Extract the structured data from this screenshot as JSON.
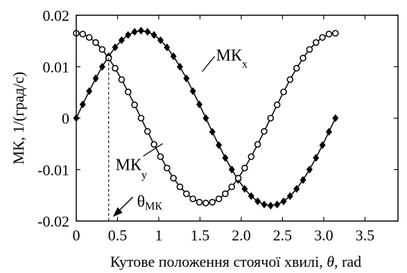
{
  "chart_data": {
    "type": "line",
    "title": "",
    "xlabel_prefix": "Кутове положення стоячої хвилі, ",
    "xlabel_symbol": "θ",
    "xlabel_suffix": ", rad",
    "ylabel": "МК, 1/(град/с)",
    "xlim": [
      0,
      3.9
    ],
    "ylim": [
      -0.02,
      0.02
    ],
    "xticks": [
      0,
      0.5,
      1,
      1.5,
      2.0,
      2.5,
      3.0,
      3.5
    ],
    "xtick_labels": [
      "0",
      "0.5",
      "1",
      "1.5",
      "2.0",
      "2.5",
      "3.0",
      "3.5"
    ],
    "yticks": [
      0.02,
      0.01,
      0,
      -0.01,
      -0.02
    ],
    "ytick_labels": [
      "0.02",
      "0.01",
      "0",
      "-0.01",
      "-0.02"
    ],
    "grid": false,
    "legend": "none",
    "series": [
      {
        "marker": "diamond",
        "color": "#000000",
        "x": [
          0,
          0.0785,
          0.157,
          0.2356,
          0.3142,
          0.3927,
          0.4712,
          0.5498,
          0.6283,
          0.7069,
          0.7854,
          0.864,
          0.9425,
          1.021,
          1.0996,
          1.1781,
          1.2566,
          1.3352,
          1.4137,
          1.4923,
          1.5708,
          1.6493,
          1.7279,
          1.8064,
          1.885,
          1.9635,
          2.042,
          2.1206,
          2.1991,
          2.2777,
          2.3562,
          2.4347,
          2.5133,
          2.5918,
          2.6704,
          2.7489,
          2.8274,
          2.906,
          2.9845,
          3.0631,
          3.1416
        ],
        "y": [
          0,
          0.00266,
          0.00525,
          0.00772,
          0.00999,
          0.01202,
          0.01375,
          0.01515,
          0.01617,
          0.01679,
          0.017,
          0.01679,
          0.01617,
          0.01515,
          0.01375,
          0.01202,
          0.00999,
          0.00772,
          0.00525,
          0.00266,
          0,
          -0.00266,
          -0.00525,
          -0.00772,
          -0.00999,
          -0.01202,
          -0.01375,
          -0.01515,
          -0.01617,
          -0.01679,
          -0.017,
          -0.01679,
          -0.01617,
          -0.01515,
          -0.01375,
          -0.01202,
          -0.00999,
          -0.00772,
          -0.00525,
          -0.00266,
          0
        ]
      },
      {
        "marker": "circle",
        "color": "#000000",
        "x": [
          0,
          0.0785,
          0.157,
          0.2356,
          0.3142,
          0.3927,
          0.4712,
          0.5498,
          0.6283,
          0.7069,
          0.7854,
          0.864,
          0.9425,
          1.021,
          1.0996,
          1.1781,
          1.2566,
          1.3352,
          1.4137,
          1.4923,
          1.5708,
          1.6493,
          1.7279,
          1.8064,
          1.885,
          1.9635,
          2.042,
          2.1206,
          2.1991,
          2.2777,
          2.3562,
          2.4347,
          2.5133,
          2.5918,
          2.6704,
          2.7489,
          2.8274,
          2.906,
          2.9845,
          3.0631,
          3.1416
        ],
        "y": [
          0.0165,
          0.01634,
          0.01569,
          0.0147,
          0.01335,
          0.01167,
          0.0097,
          0.00749,
          0.0051,
          0.00258,
          0,
          -0.00258,
          -0.0051,
          -0.00749,
          -0.0097,
          -0.01167,
          -0.01335,
          -0.0147,
          -0.01569,
          -0.01634,
          -0.0165,
          -0.01634,
          -0.01569,
          -0.0147,
          -0.01335,
          -0.01167,
          -0.0097,
          -0.00749,
          -0.0051,
          -0.00258,
          0,
          0.00258,
          0.0051,
          0.00749,
          0.0097,
          0.01167,
          0.01335,
          0.0147,
          0.01569,
          0.01634,
          0.0165
        ]
      }
    ],
    "annotations": {
      "mkx": {
        "main": "МК",
        "sub": "x",
        "x": 1.56,
        "y": 0.0104
      },
      "mky": {
        "main": "МК",
        "sub": "y",
        "x": 0.98,
        "y": -0.009
      },
      "theta": {
        "main": "θ",
        "sub": "МК",
        "x": 0.35,
        "y": -0.0175,
        "crossing_x": 0.3927,
        "crossing_y": 0.0117
      }
    }
  }
}
